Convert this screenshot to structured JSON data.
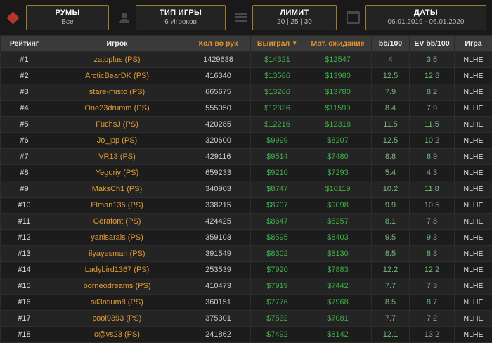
{
  "filters": [
    {
      "title": "РУМЫ",
      "value": "Все",
      "icon": "rooms-icon"
    },
    {
      "title": "ТИП ИГРЫ",
      "value": "6 Игроков",
      "icon": "game-type-icon"
    },
    {
      "title": "ЛИМИТ",
      "value": "20 | 25 | 30",
      "icon": "limit-icon"
    },
    {
      "title": "ДАТЫ",
      "value": "06.01.2019 - 06.01.2020",
      "icon": "calendar-icon"
    }
  ],
  "colors": {
    "accent_orange": "#e0922f",
    "positive_green": "#3fae46",
    "bb_green": "#76b576",
    "filter_border_gold": "#9c7b2a",
    "rooms_icon_red": "#b3362b"
  },
  "table": {
    "sort_desc_glyph": "▼",
    "headers": [
      {
        "label": "Рейтинг",
        "accent": false,
        "sorted": ""
      },
      {
        "label": "Игрок",
        "accent": false,
        "sorted": ""
      },
      {
        "label": "Кол-во рук",
        "accent": true,
        "sorted": ""
      },
      {
        "label": "Выиграл",
        "accent": true,
        "sorted": "desc"
      },
      {
        "label": "Мат. ожидание",
        "accent": true,
        "sorted": ""
      },
      {
        "label": "bb/100",
        "accent": false,
        "sorted": ""
      },
      {
        "label": "EV bb/100",
        "accent": false,
        "sorted": ""
      },
      {
        "label": "Игра",
        "accent": false,
        "sorted": ""
      }
    ],
    "rows": [
      {
        "rank": "#1",
        "player": "zatoplus (PS)",
        "hands": "1429638",
        "won": "$14321",
        "ev": "$12547",
        "bb": "4",
        "evbb": "3.5",
        "game": "NLHE"
      },
      {
        "rank": "#2",
        "player": "ArcticBearDK (PS)",
        "hands": "416340",
        "won": "$13586",
        "ev": "$13980",
        "bb": "12.5",
        "evbb": "12.8",
        "game": "NLHE"
      },
      {
        "rank": "#3",
        "player": "stare-misto (PS)",
        "hands": "665675",
        "won": "$13266",
        "ev": "$13780",
        "bb": "7.9",
        "evbb": "8.2",
        "game": "NLHE"
      },
      {
        "rank": "#4",
        "player": "One23drumm (PS)",
        "hands": "555050",
        "won": "$12326",
        "ev": "$11599",
        "bb": "8.4",
        "evbb": "7.9",
        "game": "NLHE"
      },
      {
        "rank": "#5",
        "player": "FuchsJ (PS)",
        "hands": "420285",
        "won": "$12216",
        "ev": "$12318",
        "bb": "11.5",
        "evbb": "11.5",
        "game": "NLHE"
      },
      {
        "rank": "#6",
        "player": "Jo_jpp (PS)",
        "hands": "320600",
        "won": "$9999",
        "ev": "$8207",
        "bb": "12.5",
        "evbb": "10.2",
        "game": "NLHE"
      },
      {
        "rank": "#7",
        "player": "VR13 (PS)",
        "hands": "429116",
        "won": "$9514",
        "ev": "$7480",
        "bb": "8.8",
        "evbb": "6.9",
        "game": "NLHE"
      },
      {
        "rank": "#8",
        "player": "Yegoriy (PS)",
        "hands": "659233",
        "won": "$9210",
        "ev": "$7293",
        "bb": "5.4",
        "evbb": "4.3",
        "game": "NLHE"
      },
      {
        "rank": "#9",
        "player": "MaksCh1 (PS)",
        "hands": "340903",
        "won": "$8747",
        "ev": "$10119",
        "bb": "10.2",
        "evbb": "11.8",
        "game": "NLHE"
      },
      {
        "rank": "#10",
        "player": "Elman135 (PS)",
        "hands": "338215",
        "won": "$8707",
        "ev": "$9098",
        "bb": "9.9",
        "evbb": "10.5",
        "game": "NLHE"
      },
      {
        "rank": "#11",
        "player": "Gerafont (PS)",
        "hands": "424425",
        "won": "$8647",
        "ev": "$8257",
        "bb": "8.1",
        "evbb": "7.8",
        "game": "NLHE"
      },
      {
        "rank": "#12",
        "player": "yanisarais (PS)",
        "hands": "359103",
        "won": "$8595",
        "ev": "$8403",
        "bb": "9.5",
        "evbb": "9.3",
        "game": "NLHE"
      },
      {
        "rank": "#13",
        "player": "ilyayesman (PS)",
        "hands": "391549",
        "won": "$8302",
        "ev": "$8130",
        "bb": "8.5",
        "evbb": "8.3",
        "game": "NLHE"
      },
      {
        "rank": "#14",
        "player": "Ladybird1367 (PS)",
        "hands": "253539",
        "won": "$7920",
        "ev": "$7883",
        "bb": "12.2",
        "evbb": "12.2",
        "game": "NLHE"
      },
      {
        "rank": "#15",
        "player": "borneodreams (PS)",
        "hands": "410473",
        "won": "$7919",
        "ev": "$7442",
        "bb": "7.7",
        "evbb": "7.3",
        "game": "NLHE"
      },
      {
        "rank": "#16",
        "player": "sil3ntium8 (PS)",
        "hands": "360151",
        "won": "$7776",
        "ev": "$7968",
        "bb": "8.5",
        "evbb": "8.7",
        "game": "NLHE"
      },
      {
        "rank": "#17",
        "player": "cool9393 (PS)",
        "hands": "375301",
        "won": "$7532",
        "ev": "$7081",
        "bb": "7.7",
        "evbb": "7.2",
        "game": "NLHE"
      },
      {
        "rank": "#18",
        "player": "c@vs23 (PS)",
        "hands": "241862",
        "won": "$7492",
        "ev": "$8142",
        "bb": "12.1",
        "evbb": "13.2",
        "game": "NLHE"
      }
    ]
  }
}
